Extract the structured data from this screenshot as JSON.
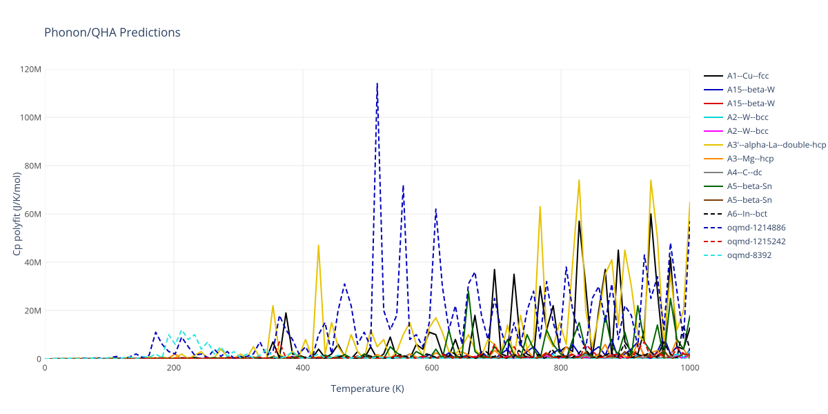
{
  "title": "Phonon/QHA Predictions",
  "xlabel": "Temperature (K)",
  "ylabel": "Cp polyfit (J/K/mol)",
  "chart_type": "line",
  "background_color": "#ffffff",
  "grid_color": "#e9e9e9",
  "axis_line_color": "#444444",
  "font_family": "Open Sans, Arial",
  "title_fontsize": 17,
  "label_fontsize": 14,
  "tick_fontsize": 12,
  "xlim": [
    0,
    1000
  ],
  "ylim": [
    0,
    120
  ],
  "xtick_step": 200,
  "xtick_labels": [
    "0",
    "200",
    "400",
    "600",
    "800",
    "1000"
  ],
  "ytick_step": 20,
  "ytick_labels": [
    "0",
    "20M",
    "40M",
    "60M",
    "80M",
    "100M",
    "120M"
  ],
  "line_width": 2,
  "series": [
    {
      "name": "A1--Cu--fcc",
      "color": "#000000",
      "dash": "solid",
      "y": [
        0,
        0,
        0.1,
        0,
        0.1,
        0,
        0.2,
        0.1,
        0,
        0.1,
        0,
        0.3,
        0.1,
        0,
        0.2,
        0,
        0.5,
        0,
        0.3,
        0,
        0.1,
        0.4,
        0,
        0.6,
        0.1,
        0,
        0.5,
        0,
        0.2,
        0,
        1.0,
        0,
        0.4,
        0,
        0.2,
        7,
        0.3,
        19,
        2,
        1.5,
        0.5,
        0.2,
        4,
        0.4,
        2,
        6,
        1,
        0,
        3,
        0,
        5,
        0,
        2,
        9,
        0.3,
        1,
        0,
        6,
        4,
        11,
        10,
        2,
        1,
        8,
        0,
        2,
        18,
        1,
        0.5,
        37,
        2,
        1,
        35,
        6,
        2,
        0.5,
        30,
        12,
        22,
        3,
        5,
        3,
        57,
        30,
        0.5,
        20,
        37,
        0.2,
        45,
        7,
        3,
        2,
        12,
        60,
        28,
        0.5,
        42,
        5,
        4,
        13
      ]
    },
    {
      "name": "A15--beta-W",
      "color": "#0000bd",
      "dash": "solid",
      "y": [
        0,
        0,
        0,
        0.1,
        0,
        0.1,
        0,
        0,
        0.2,
        0,
        0.1,
        0,
        0,
        0.3,
        0,
        0.2,
        0,
        0.1,
        0,
        0.2,
        0,
        0.1,
        0.3,
        0,
        0.2,
        0,
        0.4,
        0,
        0.5,
        0,
        0.3,
        0.6,
        0,
        0.2,
        0,
        0.7,
        0.3,
        0,
        1.0,
        0.2,
        0.5,
        0,
        0.8,
        0.3,
        0,
        1.2,
        0.5,
        0,
        0.3,
        1.5,
        0,
        0.8,
        0.2,
        0,
        1.0,
        0.5,
        2,
        0,
        0.3,
        1.8,
        0,
        0.5,
        2.5,
        0,
        0.8,
        1.5,
        0,
        3,
        0.5,
        0,
        2,
        4,
        0,
        0.5,
        3,
        5,
        1.5,
        0,
        2.5,
        4,
        0,
        6,
        2,
        0,
        3,
        5,
        1.5,
        8,
        0,
        2,
        4,
        7,
        1,
        0,
        3,
        9,
        2,
        5,
        0,
        4
      ]
    },
    {
      "name": "A15--beta-W",
      "color": "#dc0000",
      "dash": "solid",
      "y": [
        0,
        0,
        0,
        0,
        0.1,
        0,
        0,
        0.1,
        0,
        0,
        0.1,
        0,
        0.1,
        0,
        0,
        0.1,
        0,
        0.2,
        0,
        0.1,
        0,
        0,
        0.2,
        0.1,
        0,
        0.1,
        0,
        0.2,
        0,
        0.1,
        0.2,
        0,
        0.1,
        0.3,
        0,
        0.1,
        0,
        0.3,
        0.1,
        0,
        0.4,
        0.1,
        0,
        0.2,
        0.5,
        0,
        0.3,
        0.1,
        0,
        0.5,
        0.2,
        0,
        0.4,
        0.6,
        0,
        0.3,
        0.1,
        0.7,
        0,
        0.4,
        0.2,
        0.8,
        0,
        0.5,
        0.3,
        0,
        1.0,
        0.4,
        0,
        0.6,
        0.2,
        1.2,
        0,
        0.5,
        0.8,
        0,
        1.5,
        0.3,
        0,
        1.0,
        0.5,
        1.8,
        0,
        0.7,
        0.3,
        2,
        0,
        1.2,
        0.5,
        0,
        2.5,
        0.8,
        0,
        1.5,
        0.4,
        3,
        0,
        1.0,
        0.6,
        1
      ]
    },
    {
      "name": "A2--W--bcc",
      "color": "#00d4d4",
      "dash": "solid",
      "y": [
        0,
        0,
        0,
        0,
        0,
        0,
        0.1,
        0,
        0,
        0.1,
        0,
        0,
        0.1,
        0,
        0.1,
        0,
        0,
        0.1,
        0.2,
        0,
        0.1,
        0,
        0.2,
        0,
        0.1,
        0,
        0.2,
        0.1,
        0,
        0.3,
        0,
        0.2,
        0.1,
        0,
        0.3,
        0.2,
        0,
        0.1,
        0.4,
        0,
        0.2,
        0.3,
        0,
        0.5,
        0.2,
        0,
        0.3,
        0.1,
        0.6,
        0,
        0.4,
        0.2,
        0,
        0.7,
        0.3,
        0,
        0.5,
        0.2,
        0.8,
        0,
        0.4,
        0.6,
        0,
        0.3,
        1.0,
        0,
        0.5,
        0.2,
        1.2,
        0,
        0.7,
        0.4,
        0,
        1.5,
        0.3,
        0.8,
        0,
        0.5,
        1.8,
        0,
        1.0,
        0.4,
        0,
        2,
        0.6,
        0,
        1.3,
        0.8,
        2.5,
        0,
        0.5,
        1.5,
        0,
        3,
        0.7,
        0,
        1.0,
        2,
        0.5,
        3.5
      ]
    },
    {
      "name": "A2--W--bcc",
      "color": "#ff00ff",
      "dash": "solid",
      "y": [
        0,
        0,
        0,
        0,
        0,
        0,
        0,
        0.1,
        0,
        0,
        0,
        0.1,
        0,
        0,
        0.1,
        0,
        0,
        0.1,
        0,
        0.1,
        0,
        0,
        0.1,
        0,
        0.1,
        0,
        0,
        0.2,
        0,
        0.1,
        0,
        0.2,
        0.1,
        0,
        0.2,
        0,
        0.1,
        0.3,
        0,
        0.2,
        0.1,
        0,
        0.3,
        0.2,
        0,
        0.1,
        0.4,
        0,
        0.2,
        0.3,
        0,
        0.1,
        0.5,
        0.2,
        0,
        0.4,
        0.1,
        0,
        0.6,
        0.3,
        0,
        0.2,
        0.7,
        0.4,
        0,
        0.1,
        0.8,
        0.3,
        0,
        0.5,
        0.2,
        1.0,
        0,
        0.4,
        0.6,
        0,
        0.3,
        1.2,
        0.5,
        0,
        0.7,
        0.2,
        1.5,
        0,
        0.6,
        0.4,
        0,
        1.8,
        0.8,
        0.3,
        0,
        1.0,
        0.5,
        2,
        0,
        0.7,
        0.4,
        1.2,
        0,
        2.5
      ]
    },
    {
      "name": "A3'--alpha-La--double-hcp",
      "color": "#e6c200",
      "dash": "solid",
      "y": [
        0,
        0,
        0,
        0.2,
        0,
        0.3,
        0,
        0.1,
        0.4,
        0,
        0.5,
        0,
        0.2,
        0.6,
        0,
        0.3,
        0.8,
        0,
        1.0,
        0,
        0.5,
        2.0,
        0,
        1.5,
        3,
        0,
        0.5,
        4,
        1,
        0,
        2,
        0.3,
        5,
        0.5,
        0,
        22,
        2,
        0,
        3,
        1,
        8,
        0.5,
        47,
        2,
        15,
        5,
        1,
        10,
        3,
        0,
        12,
        5,
        8,
        0,
        3,
        10,
        15,
        6,
        1,
        13,
        17,
        11,
        3,
        2,
        5,
        10,
        4,
        1,
        8,
        6,
        2,
        14,
        0.5,
        18,
        4,
        8,
        63,
        10,
        5,
        15,
        6,
        40,
        74,
        20,
        5,
        18,
        35,
        41,
        14,
        45,
        30,
        10,
        7,
        74,
        50,
        6,
        35,
        12,
        20,
        65
      ]
    },
    {
      "name": "A3--Mg--hcp",
      "color": "#ff8c00",
      "dash": "solid",
      "y": [
        0,
        0,
        0,
        0.1,
        0,
        0.1,
        0,
        0.2,
        0,
        0.1,
        0,
        0.2,
        0.1,
        0,
        0.3,
        0,
        0.2,
        0.4,
        0,
        0.3,
        2.0,
        0,
        0.5,
        0.2,
        0,
        0.4,
        0.1,
        0.6,
        0,
        0.3,
        0.5,
        0,
        0.8,
        0.2,
        0,
        1.0,
        0.4,
        0,
        0.6,
        1.2,
        0,
        0.3,
        0.8,
        0.5,
        0,
        1.5,
        0.4,
        0,
        1.0,
        0.6,
        0,
        1.8,
        0.5,
        0.2,
        1.2,
        0,
        2,
        0.8,
        0,
        0.4,
        2.5,
        1.0,
        0,
        0.6,
        3,
        1.5,
        0,
        0.8,
        0.3,
        3.5,
        1.2,
        0,
        2,
        0.5,
        4,
        0,
        1.0,
        2.5,
        0,
        0.7,
        5,
        1.5,
        0,
        3,
        0.4,
        1.8,
        6,
        0,
        2,
        1.2,
        0,
        7,
        0.8,
        2.5,
        3.5,
        0,
        1.5,
        8,
        4,
        0
      ]
    },
    {
      "name": "A4--C--dc",
      "color": "#808080",
      "dash": "solid",
      "y": [
        0,
        0,
        0,
        0,
        0,
        0,
        0,
        0,
        0.1,
        0,
        0,
        0,
        0.1,
        0,
        0,
        0.1,
        0,
        0,
        0.1,
        0,
        0,
        0.1,
        0,
        0.1,
        0,
        0,
        0.1,
        0,
        0.1,
        0,
        0,
        0.2,
        0,
        0.1,
        0,
        0.2,
        0.1,
        0,
        0.2,
        0,
        0.1,
        0.3,
        0,
        0.2,
        0.1,
        0,
        0.3,
        0.2,
        0,
        0.1,
        0.4,
        0,
        0.2,
        0.3,
        0.1,
        0,
        0.5,
        0.2,
        0,
        0.4,
        0.1,
        0.6,
        0,
        0.3,
        0.2,
        0.7,
        0,
        0.4,
        0.1,
        0.8,
        0.3,
        0,
        0.5,
        0.2,
        1.0,
        0,
        0.4,
        0.6,
        0.1,
        1.2,
        0,
        0.5,
        0.3,
        1.5,
        0,
        0.7,
        0.4,
        0.2,
        1.8,
        0,
        0.6,
        0.8,
        0.3,
        2,
        0,
        0.5,
        1.0,
        0.4,
        2.5,
        0
      ]
    },
    {
      "name": "A5--beta-Sn",
      "color": "#006400",
      "dash": "solid",
      "y": [
        0,
        0,
        0,
        0,
        0.1,
        0,
        0,
        0.1,
        0,
        0.1,
        0,
        0.2,
        0,
        0.1,
        0,
        0.2,
        0.1,
        0,
        0.3,
        0,
        0.2,
        0.1,
        0,
        0.4,
        0,
        0.2,
        0.5,
        0,
        0.3,
        0.1,
        0.6,
        0,
        0.4,
        0.2,
        0,
        0.8,
        0.3,
        0,
        0.5,
        1.0,
        0,
        0.4,
        0.2,
        1.5,
        0.6,
        0,
        1.8,
        0.3,
        0,
        2,
        0.5,
        1.0,
        0,
        5,
        2.5,
        0.8,
        0,
        3,
        1.5,
        0,
        4,
        0,
        12,
        1.2,
        0.5,
        28,
        3,
        0.8,
        0,
        5,
        2,
        8,
        1.5,
        0.3,
        10,
        4,
        0,
        12,
        6,
        2.5,
        0,
        8,
        15,
        3.5,
        1.0,
        0,
        18,
        5,
        2,
        11,
        0.8,
        22,
        7,
        3,
        14,
        0,
        25,
        8,
        4,
        18
      ]
    },
    {
      "name": "A5--beta-Sn",
      "color": "#7a3e00",
      "dash": "solid",
      "y": [
        0,
        0,
        0,
        0,
        0,
        0,
        0.1,
        0,
        0,
        0.1,
        0,
        0,
        0.1,
        0,
        0.1,
        0,
        0,
        0.2,
        0,
        0.1,
        0,
        0.2,
        0.1,
        0,
        0,
        0.2,
        0.1,
        0,
        0.3,
        0,
        0.2,
        0.1,
        0,
        0.3,
        0.2,
        0,
        0.4,
        0.1,
        0,
        0.3,
        0.2,
        0.5,
        0,
        0.4,
        0.1,
        0.6,
        0,
        0.3,
        0.2,
        0.7,
        0.5,
        0,
        0.4,
        0.1,
        0.8,
        0.6,
        0,
        0.3,
        1.0,
        0.5,
        0,
        0.2,
        1.2,
        0.7,
        0.4,
        0,
        0.1,
        1.5,
        0.8,
        0.3,
        0,
        0.6,
        1.8,
        0.5,
        1.0,
        0,
        0.4,
        2,
        0.7,
        1.2,
        0,
        0.3,
        0.9,
        2.5,
        0.6,
        0,
        1.5,
        1.0,
        0.4,
        3,
        0,
        0.8,
        1.8,
        0.5,
        1.2,
        3.5,
        0,
        0.7,
        2,
        1.5
      ]
    },
    {
      "name": "A6--In--bct",
      "color": "#000000",
      "dash": "dash",
      "y": [
        0,
        0,
        0,
        0.1,
        0,
        0,
        0.1,
        0,
        0.1,
        0,
        0.2,
        0,
        0.1,
        0,
        0.2,
        0.1,
        0,
        0.3,
        0,
        0.2,
        0,
        0.4,
        0.1,
        0,
        0.3,
        0.5,
        0,
        0.2,
        0.6,
        0.1,
        0,
        0.4,
        0.7,
        0,
        0.3,
        0.1,
        0.8,
        0.5,
        0,
        0.2,
        1.0,
        0.4,
        0,
        0.6,
        0.1,
        1.2,
        0.5,
        0,
        0.3,
        1.5,
        0.7,
        0,
        0.4,
        0.2,
        1.8,
        0.8,
        0,
        0.5,
        2,
        1.0,
        0,
        0.3,
        2.5,
        0.6,
        1.2,
        0,
        0.4,
        3,
        0.8,
        1.5,
        0.2,
        0,
        3.5,
        1.0,
        0.5,
        1.8,
        0,
        4,
        0.7,
        1.2,
        0.3,
        2,
        5,
        0,
        0.9,
        1.5,
        2.5,
        0.4,
        6,
        0,
        1.8,
        1.1,
        3,
        0.6,
        7,
        2,
        0,
        14,
        3.5
      ]
    },
    {
      "name": "oqmd-1214886",
      "color": "#0000bd",
      "dash": "dash",
      "y": [
        0,
        0,
        0.1,
        0,
        0.2,
        0,
        0.3,
        0.1,
        0.5,
        0,
        0.4,
        1.0,
        0,
        0.8,
        2,
        0.5,
        1.5,
        11,
        6,
        3,
        2,
        9,
        5,
        1.5,
        2,
        0.5,
        4,
        1,
        3,
        0.2,
        0.8,
        1.0,
        2,
        7,
        1.5,
        3,
        18,
        12,
        8,
        2,
        5,
        0,
        10,
        15,
        2,
        20,
        31,
        22,
        6,
        11,
        5,
        114,
        20,
        12,
        18,
        72,
        8,
        10,
        5,
        15,
        62,
        30,
        12,
        22,
        6,
        31,
        36,
        18,
        8,
        25,
        12,
        3,
        15,
        5,
        20,
        28,
        8,
        32,
        15,
        6,
        38,
        20,
        10,
        4,
        25,
        30,
        15,
        31,
        8,
        22,
        18,
        5,
        43,
        25,
        34,
        12,
        48,
        28,
        8,
        57
      ]
    },
    {
      "name": "oqmd-1215242",
      "color": "#dc0000",
      "dash": "dash",
      "y": [
        0,
        0,
        0,
        0,
        0.1,
        0,
        0,
        0.1,
        0,
        0.1,
        0,
        0,
        0.2,
        0,
        0.1,
        0.2,
        0,
        0.1,
        0.3,
        0,
        0.2,
        0.1,
        0.4,
        0,
        0.2,
        0.5,
        0.1,
        0,
        0.3,
        0.6,
        0,
        0.2,
        0.4,
        0.7,
        0.1,
        0,
        7,
        0.3,
        0.8,
        0.2,
        0,
        0.6,
        0.4,
        1.0,
        0.1,
        0,
        0.7,
        0.3,
        1.2,
        0.5,
        0,
        0.2,
        0.8,
        0.4,
        1.5,
        0.6,
        0,
        0.3,
        1.0,
        0.5,
        0.1,
        1.8,
        0.7,
        0,
        0.4,
        1.2,
        0.6,
        2,
        0.2,
        6,
        0,
        0.8,
        5,
        0.5,
        0.3,
        1.0,
        0,
        2.8,
        0.6,
        0.2,
        1.3,
        1.8,
        0,
        6,
        3.2,
        0.7,
        0.4,
        1.5,
        2,
        0,
        0.9,
        3.8,
        7,
        0.5,
        2.5,
        1.2,
        0,
        4.5,
        2,
        1.5
      ]
    },
    {
      "name": "oqmd-8392",
      "color": "#29e5e5",
      "dash": "dash",
      "y": [
        0,
        0,
        0.1,
        0,
        0.2,
        0,
        0.1,
        0.3,
        0,
        0.2,
        0.5,
        0,
        0.4,
        0.8,
        0,
        1.0,
        0.6,
        2,
        0.3,
        10,
        6,
        12,
        8,
        10,
        4,
        7,
        2,
        5,
        1,
        3,
        0.5,
        2,
        0.3,
        1.5,
        4,
        0.8,
        0.2,
        1.0,
        3,
        0.5,
        0.1,
        0.8,
        2,
        0.4,
        0.6,
        1.5,
        0.2,
        0.3,
        1.0,
        0.5,
        0.1,
        0.8,
        0.4,
        0.2,
        0.6,
        0.3,
        0.1,
        0.5,
        0.2,
        0.4,
        0.1,
        0.3,
        0.2,
        0,
        0.1,
        0,
        0,
        0,
        0,
        0,
        0,
        0,
        0,
        0,
        0,
        0,
        0,
        0,
        0,
        0,
        0,
        0,
        0,
        0,
        0,
        0,
        0,
        0,
        0,
        0,
        0,
        0,
        0,
        0,
        0,
        0,
        0,
        0,
        0,
        0
      ]
    }
  ]
}
